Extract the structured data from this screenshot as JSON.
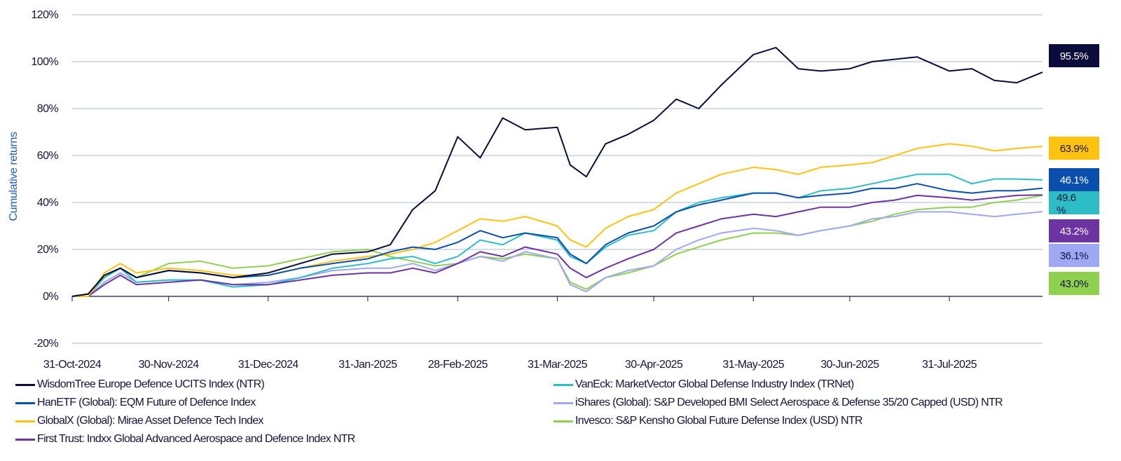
{
  "chart_data": {
    "type": "line",
    "title": "",
    "xlabel": "",
    "ylabel": "Cumulative returns",
    "ylim": [
      -20,
      120
    ],
    "yticks": [
      -20,
      0,
      20,
      40,
      60,
      80,
      100,
      120
    ],
    "ytick_labels": [
      "-20%",
      "0%",
      "20%",
      "40%",
      "60%",
      "80%",
      "100%",
      "120%"
    ],
    "grid": true,
    "legend_position": "bottom",
    "x_tick_labels": [
      "31-Oct-2024",
      "30-Nov-2024",
      "31-Dec-2024",
      "31-Jan-2025",
      "28-Feb-2025",
      "31-Mar-2025",
      "30-Apr-2025",
      "31-May-2025",
      "30-Jun-2025",
      "31-Jul-2025"
    ],
    "x": [
      "2024-10-31",
      "2024-11-05",
      "2024-11-10",
      "2024-11-15",
      "2024-11-20",
      "2024-11-30",
      "2024-12-10",
      "2024-12-20",
      "2024-12-31",
      "2025-01-10",
      "2025-01-20",
      "2025-01-31",
      "2025-02-07",
      "2025-02-14",
      "2025-02-21",
      "2025-02-28",
      "2025-03-07",
      "2025-03-14",
      "2025-03-21",
      "2025-03-31",
      "2025-04-04",
      "2025-04-09",
      "2025-04-15",
      "2025-04-22",
      "2025-04-30",
      "2025-05-07",
      "2025-05-14",
      "2025-05-21",
      "2025-05-31",
      "2025-06-07",
      "2025-06-14",
      "2025-06-21",
      "2025-06-30",
      "2025-07-07",
      "2025-07-14",
      "2025-07-21",
      "2025-07-31",
      "2025-08-07",
      "2025-08-14",
      "2025-08-21",
      "2025-08-29"
    ],
    "series": [
      {
        "name": "WisdomTree Europe Defence UCITS Index (NTR)",
        "color": "#0c0c3c",
        "end_label": "95.5%",
        "values": [
          0,
          1,
          9,
          12,
          8,
          11,
          10,
          8,
          10,
          14,
          18,
          19,
          22,
          37,
          45,
          68,
          59,
          76,
          71,
          72,
          56,
          51,
          65,
          69,
          75,
          84,
          80,
          90,
          103,
          106,
          97,
          96,
          97,
          100,
          101,
          102,
          96,
          97,
          92,
          91,
          95.5
        ]
      },
      {
        "name": "HanETF (Global): EQM Future of Defence Index",
        "color": "#0b4fae",
        "end_label": "46.1%",
        "values": [
          0,
          1,
          9,
          12,
          8,
          11,
          10,
          8,
          9,
          12,
          14,
          16,
          19,
          21,
          20,
          23,
          28,
          25,
          27,
          25,
          18,
          14,
          22,
          27,
          30,
          36,
          39,
          41,
          44,
          44,
          42,
          43,
          44,
          46,
          46,
          48,
          45,
          44,
          45,
          45,
          46.1
        ]
      },
      {
        "name": "GlobalX (Global): Mirae Asset Defence Tech Index",
        "color": "#ffc20e",
        "end_label": "63.9%",
        "values": [
          0,
          0,
          10,
          14,
          10,
          12,
          11,
          9,
          9,
          12,
          15,
          17,
          18,
          20,
          23,
          28,
          33,
          32,
          34,
          30,
          24,
          21,
          29,
          34,
          37,
          44,
          48,
          52,
          55,
          54,
          52,
          55,
          56,
          57,
          60,
          63,
          65,
          64,
          62,
          63,
          63.9
        ]
      },
      {
        "name": "First Trust: Indxx Global Advanced Aerospace and Defence Index NTR",
        "color": "#6e33a3",
        "end_label": "43.2%",
        "values": [
          0,
          0,
          5,
          9,
          5,
          6,
          7,
          5,
          5,
          7,
          9,
          10,
          10,
          12,
          10,
          14,
          19,
          17,
          21,
          18,
          12,
          8,
          12,
          16,
          20,
          27,
          30,
          33,
          35,
          34,
          36,
          38,
          38,
          40,
          41,
          43,
          42,
          41,
          42,
          43,
          43.2
        ]
      },
      {
        "name": "VanEck: MarketVector Global Defense Industry Index (TRNet)",
        "color": "#2dbdc6",
        "end_label": "49.6%",
        "values": [
          0,
          1,
          8,
          12,
          6,
          7,
          7,
          4,
          5,
          8,
          12,
          14,
          16,
          17,
          14,
          17,
          24,
          22,
          27,
          24,
          17,
          14,
          21,
          26,
          28,
          36,
          40,
          42,
          44,
          44,
          42,
          45,
          46,
          48,
          50,
          52,
          52,
          48,
          50,
          50,
          49.6
        ]
      },
      {
        "name": "iShares (Global): S&P Developed BMI Select Aerospace & Defense 35/20 Capped (USD) NTR",
        "color": "#9fa8f5",
        "end_label": "36.1%",
        "values": [
          0,
          0,
          6,
          10,
          6,
          7,
          7,
          5,
          6,
          8,
          11,
          12,
          12,
          14,
          11,
          14,
          17,
          15,
          19,
          16,
          5,
          2,
          8,
          11,
          13,
          20,
          24,
          27,
          29,
          28,
          26,
          28,
          30,
          33,
          34,
          36,
          36,
          35,
          34,
          35,
          36.1
        ]
      },
      {
        "name": "Invesco: S&P Kensho Global Future Defense Index (USD) NTR",
        "color": "#8fd14f",
        "end_label": "43.0%",
        "values": [
          0,
          0,
          8,
          12,
          8,
          14,
          15,
          12,
          13,
          16,
          19,
          20,
          17,
          15,
          13,
          14,
          17,
          16,
          18,
          16,
          6,
          3,
          8,
          10,
          13,
          18,
          21,
          24,
          27,
          27,
          26,
          28,
          30,
          32,
          35,
          37,
          38,
          38,
          40,
          41,
          43.0
        ]
      }
    ]
  },
  "end_labels_order": [
    0,
    2,
    1,
    4,
    3,
    5,
    6
  ]
}
